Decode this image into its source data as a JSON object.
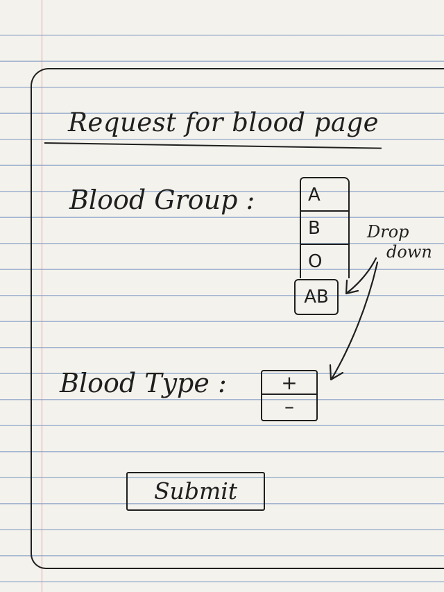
{
  "page": {
    "title": "Request for blood page"
  },
  "blood_group": {
    "label": "Blood Group :",
    "options": [
      "A",
      "B",
      "O"
    ],
    "selected": "AB"
  },
  "blood_type": {
    "label": "Blood Type :",
    "options": [
      "+",
      "–"
    ]
  },
  "annotation": {
    "line_1": "Drop",
    "line_2": "down"
  },
  "submit": {
    "label": "Submit"
  },
  "colors": {
    "paper": "#f3f2ec",
    "ruled_line": "#5f82b9",
    "margin_line": "#d77882",
    "ink": "#1f1f1f"
  }
}
